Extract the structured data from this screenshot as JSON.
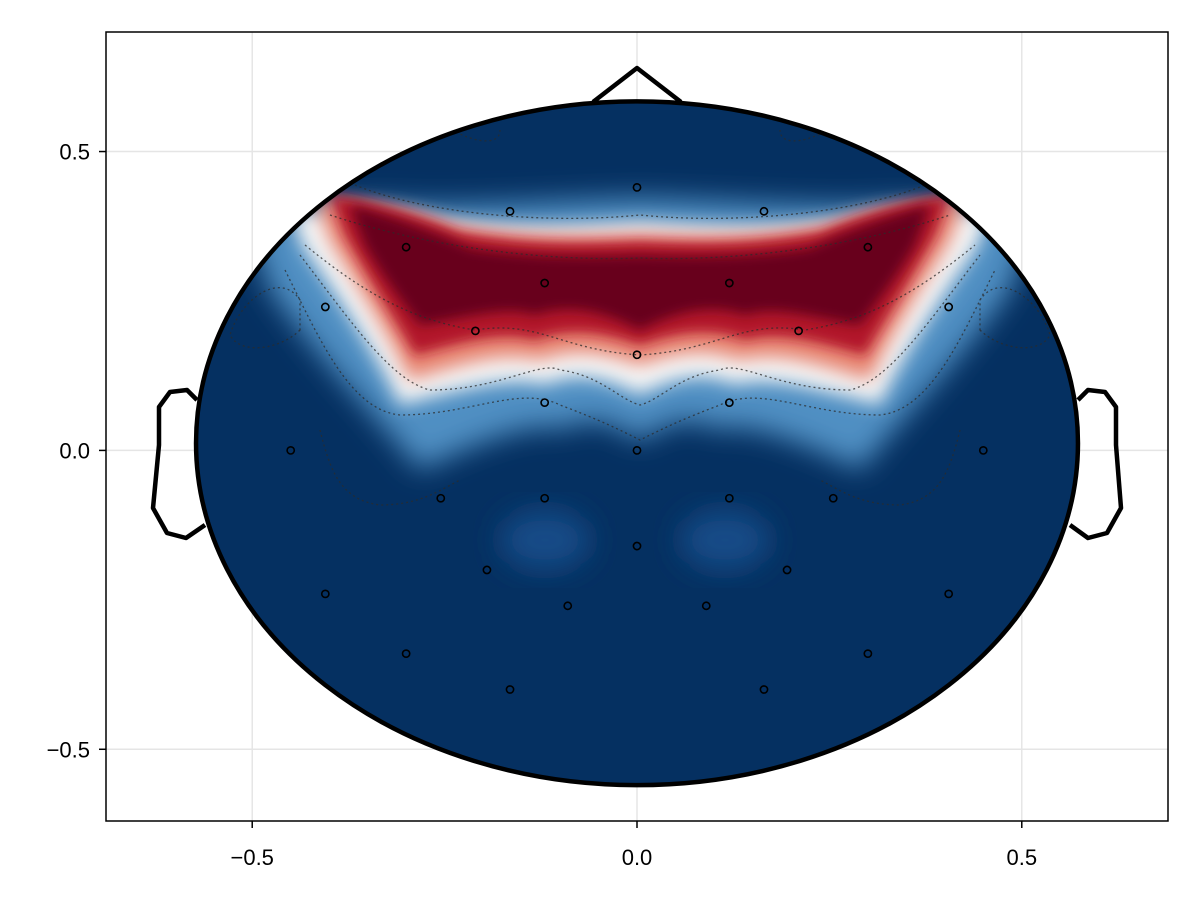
{
  "chart_data": {
    "type": "heatmap",
    "subtype": "eeg-topoplot",
    "title": "",
    "xlabel": "",
    "ylabel": "",
    "xlim": [
      -0.69,
      0.69
    ],
    "ylim": [
      -0.62,
      0.7
    ],
    "xticks": [
      -0.5,
      0.0,
      0.5
    ],
    "yticks": [
      -0.5,
      0.0,
      0.5
    ],
    "xtick_labels": [
      "−0.5",
      "0.0",
      "0.5"
    ],
    "ytick_labels": [
      "−0.5",
      "0.0",
      "0.5"
    ],
    "grid": true,
    "colormap": "RdBu (reversed)",
    "colors": {
      "low": "#053061",
      "mid": "#f7f7f7",
      "high": "#67001f",
      "grid": "#e5e5e5",
      "outline": "#000000"
    },
    "head": {
      "rx": 0.573,
      "ry": 0.572,
      "cy": 0.012
    },
    "electrodes": [
      [
        0.0,
        0.44
      ],
      [
        -0.165,
        0.4
      ],
      [
        0.165,
        0.4
      ],
      [
        -0.3,
        0.34
      ],
      [
        0.3,
        0.34
      ],
      [
        -0.12,
        0.28
      ],
      [
        0.12,
        0.28
      ],
      [
        -0.405,
        0.24
      ],
      [
        0.405,
        0.24
      ],
      [
        -0.21,
        0.2
      ],
      [
        0.21,
        0.2
      ],
      [
        0.0,
        0.16
      ],
      [
        -0.12,
        0.08
      ],
      [
        0.12,
        0.08
      ],
      [
        -0.45,
        0.0
      ],
      [
        0.0,
        0.0
      ],
      [
        0.45,
        0.0
      ],
      [
        -0.255,
        -0.08
      ],
      [
        -0.12,
        -0.08
      ],
      [
        0.12,
        -0.08
      ],
      [
        0.255,
        -0.08
      ],
      [
        0.0,
        -0.16
      ],
      [
        -0.195,
        -0.2
      ],
      [
        0.195,
        -0.2
      ],
      [
        -0.405,
        -0.24
      ],
      [
        0.405,
        -0.24
      ],
      [
        -0.09,
        -0.26
      ],
      [
        0.09,
        -0.26
      ],
      [
        -0.3,
        -0.34
      ],
      [
        0.3,
        -0.34
      ],
      [
        -0.165,
        -0.4
      ],
      [
        0.165,
        -0.4
      ]
    ]
  }
}
